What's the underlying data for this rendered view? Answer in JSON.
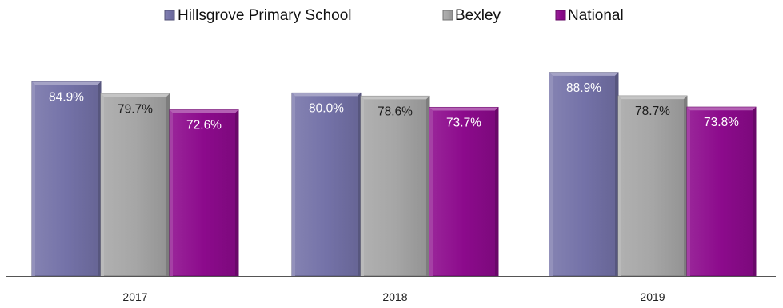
{
  "chart_data": {
    "type": "bar",
    "title": "",
    "xlabel": "",
    "ylabel": "",
    "categories": [
      "2017",
      "2018",
      "2019"
    ],
    "ylim": [
      0,
      100
    ],
    "grid": false,
    "legend_position": "top-center",
    "series": [
      {
        "name": "Hillsgrove Primary School",
        "values": [
          84.9,
          80.0,
          88.9
        ],
        "labels": [
          "84.9%",
          "80.0%",
          "88.9%"
        ],
        "color": "#7472a8",
        "label_color": "#ffffff"
      },
      {
        "name": "Bexley",
        "values": [
          79.7,
          78.6,
          78.7
        ],
        "labels": [
          "79.7%",
          "78.6%",
          "78.7%"
        ],
        "color": "#a6a6a6",
        "label_color": "#1a1a1a"
      },
      {
        "name": "National",
        "values": [
          72.6,
          73.7,
          73.8
        ],
        "labels": [
          "72.6%",
          "73.7%",
          "73.8%"
        ],
        "color": "#8c0a8c",
        "label_color": "#ffffff"
      }
    ]
  }
}
